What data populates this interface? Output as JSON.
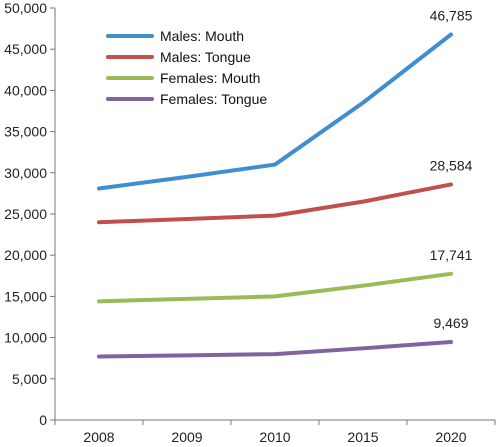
{
  "chart_data": {
    "type": "line",
    "title": "",
    "xlabel": "",
    "ylabel": "",
    "categories": [
      "2008",
      "2009",
      "2010",
      "2015",
      "2020"
    ],
    "ylim": [
      0,
      50000
    ],
    "yticks": [
      0,
      5000,
      10000,
      15000,
      20000,
      25000,
      30000,
      35000,
      40000,
      45000,
      50000
    ],
    "ytick_labels": [
      "0",
      "5,000",
      "10,000",
      "15,000",
      "20,000",
      "25,000",
      "30,000",
      "35,000",
      "40,000",
      "45,000",
      "50,000"
    ],
    "grid": false,
    "legend_position": "top-left",
    "series": [
      {
        "name": "Males: Mouth",
        "color": "#3f8fd0",
        "values": [
          28100,
          29500,
          31000,
          38500,
          46785
        ],
        "end_label": "46,785"
      },
      {
        "name": "Males: Tongue",
        "color": "#c0504d",
        "values": [
          24000,
          24400,
          24800,
          26500,
          28584
        ],
        "end_label": "28,584"
      },
      {
        "name": "Females: Mouth",
        "color": "#9bbb59",
        "values": [
          14400,
          14700,
          15000,
          16300,
          17741
        ],
        "end_label": "17,741"
      },
      {
        "name": "Females: Tongue",
        "color": "#8064a2",
        "values": [
          7700,
          7850,
          8000,
          8700,
          9469
        ],
        "end_label": "9,469"
      }
    ]
  }
}
